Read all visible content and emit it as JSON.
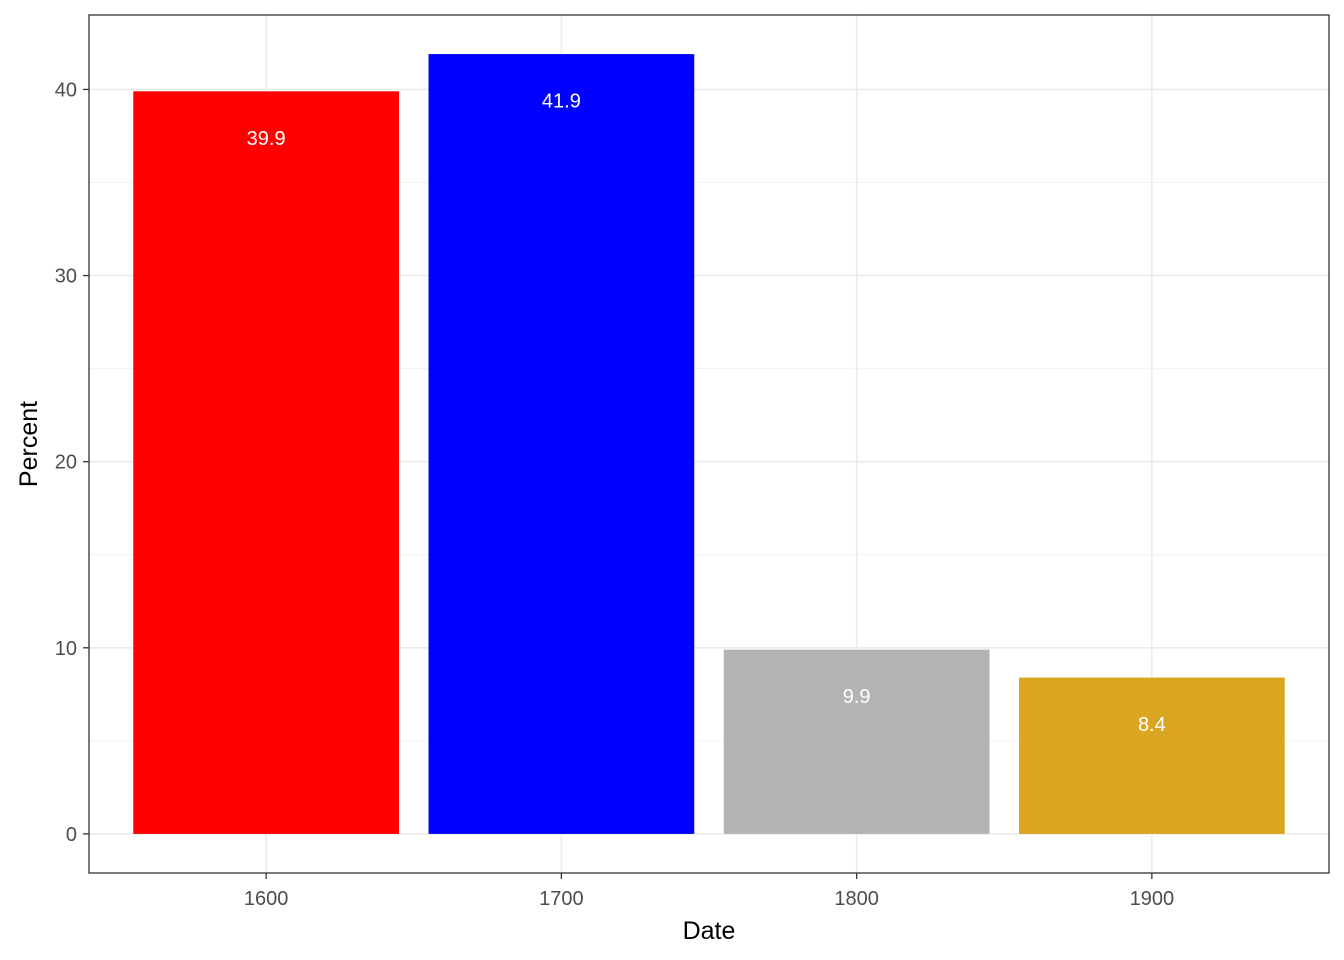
{
  "chart_data": {
    "type": "bar",
    "categories": [
      "1600",
      "1700",
      "1800",
      "1900"
    ],
    "values": [
      39.9,
      41.9,
      9.9,
      8.4
    ],
    "data_labels": [
      "39.9",
      "41.9",
      "9.9",
      "8.4"
    ],
    "colors": [
      "#ff0000",
      "#0000ff",
      "#b3b3b3",
      "#daa520"
    ],
    "xlabel": "Date",
    "ylabel": "Percent",
    "yticks": [
      0,
      10,
      20,
      30,
      40
    ],
    "ylim": [
      -2.1,
      44
    ],
    "grid": true,
    "legend": "none"
  }
}
